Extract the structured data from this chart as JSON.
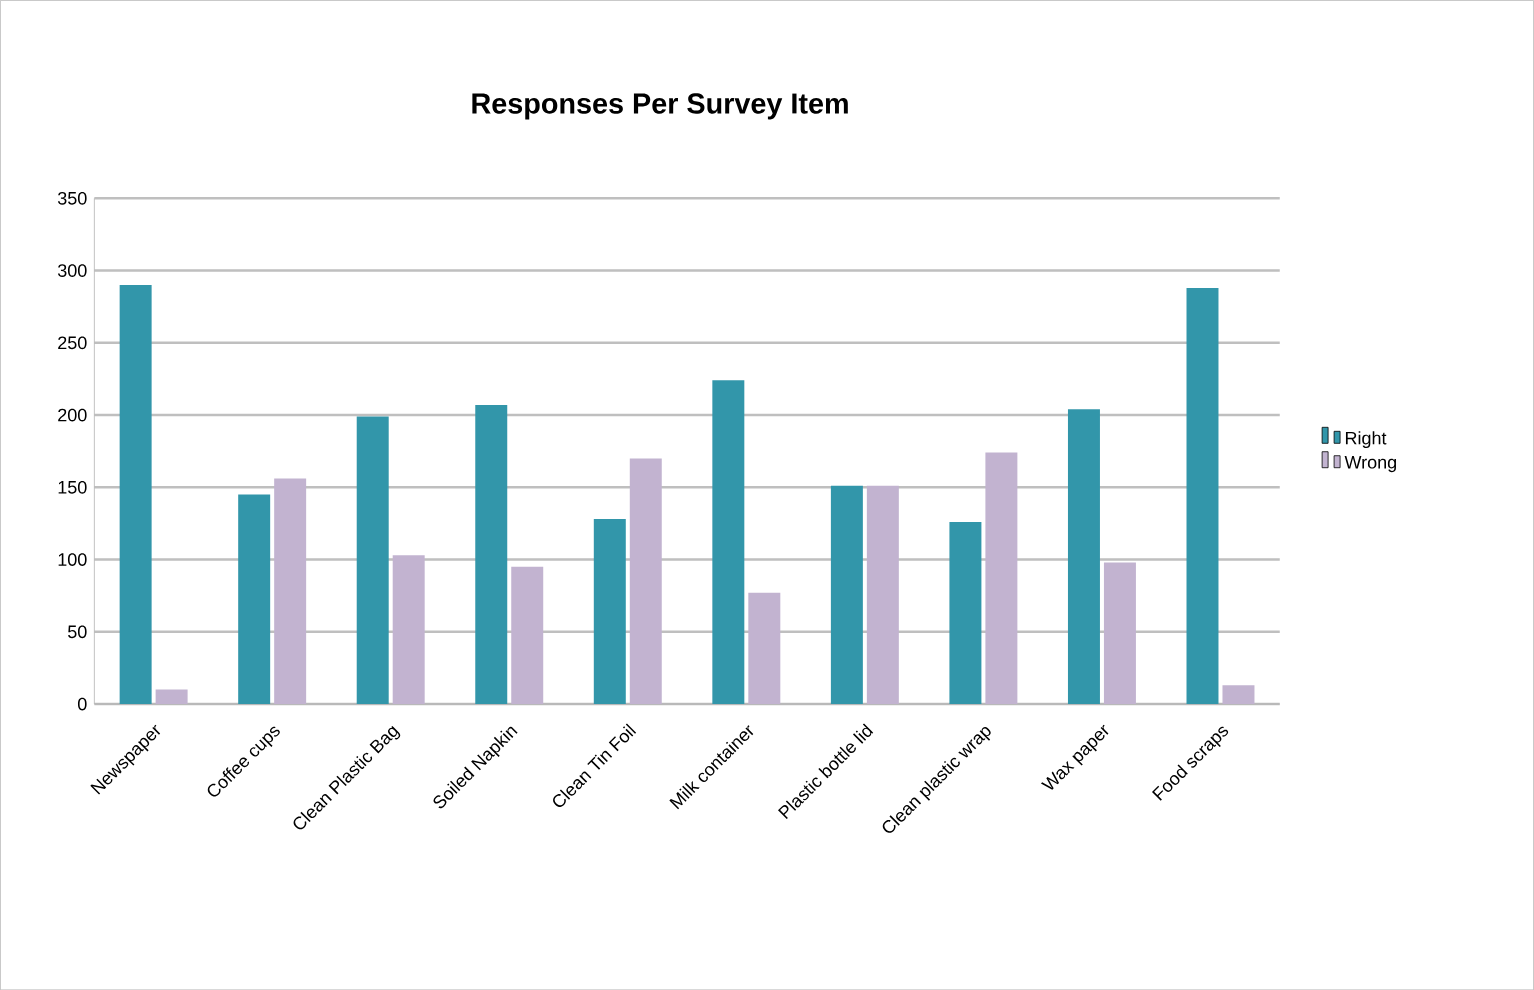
{
  "chart_data": {
    "type": "bar",
    "title": "Responses Per Survey Item",
    "categories": [
      "Newspaper",
      "Coffee cups",
      "Clean Plastic Bag",
      "Soiled Napkin",
      "Clean Tin Foil",
      "Milk container",
      "Plastic bottle lid",
      "Clean plastic wrap",
      "Wax paper",
      "Food scraps"
    ],
    "series": [
      {
        "name": "Right",
        "color": "#3296aa",
        "values": [
          290,
          145,
          199,
          207,
          128,
          224,
          151,
          126,
          204,
          288
        ]
      },
      {
        "name": "Wrong",
        "color": "#c2b3d0",
        "values": [
          10,
          156,
          103,
          95,
          170,
          77,
          151,
          174,
          98,
          13
        ]
      }
    ],
    "ylim": [
      0,
      350
    ],
    "yticks": [
      0,
      50,
      100,
      150,
      200,
      250,
      300,
      350
    ],
    "grid": "y",
    "legend": "right"
  }
}
